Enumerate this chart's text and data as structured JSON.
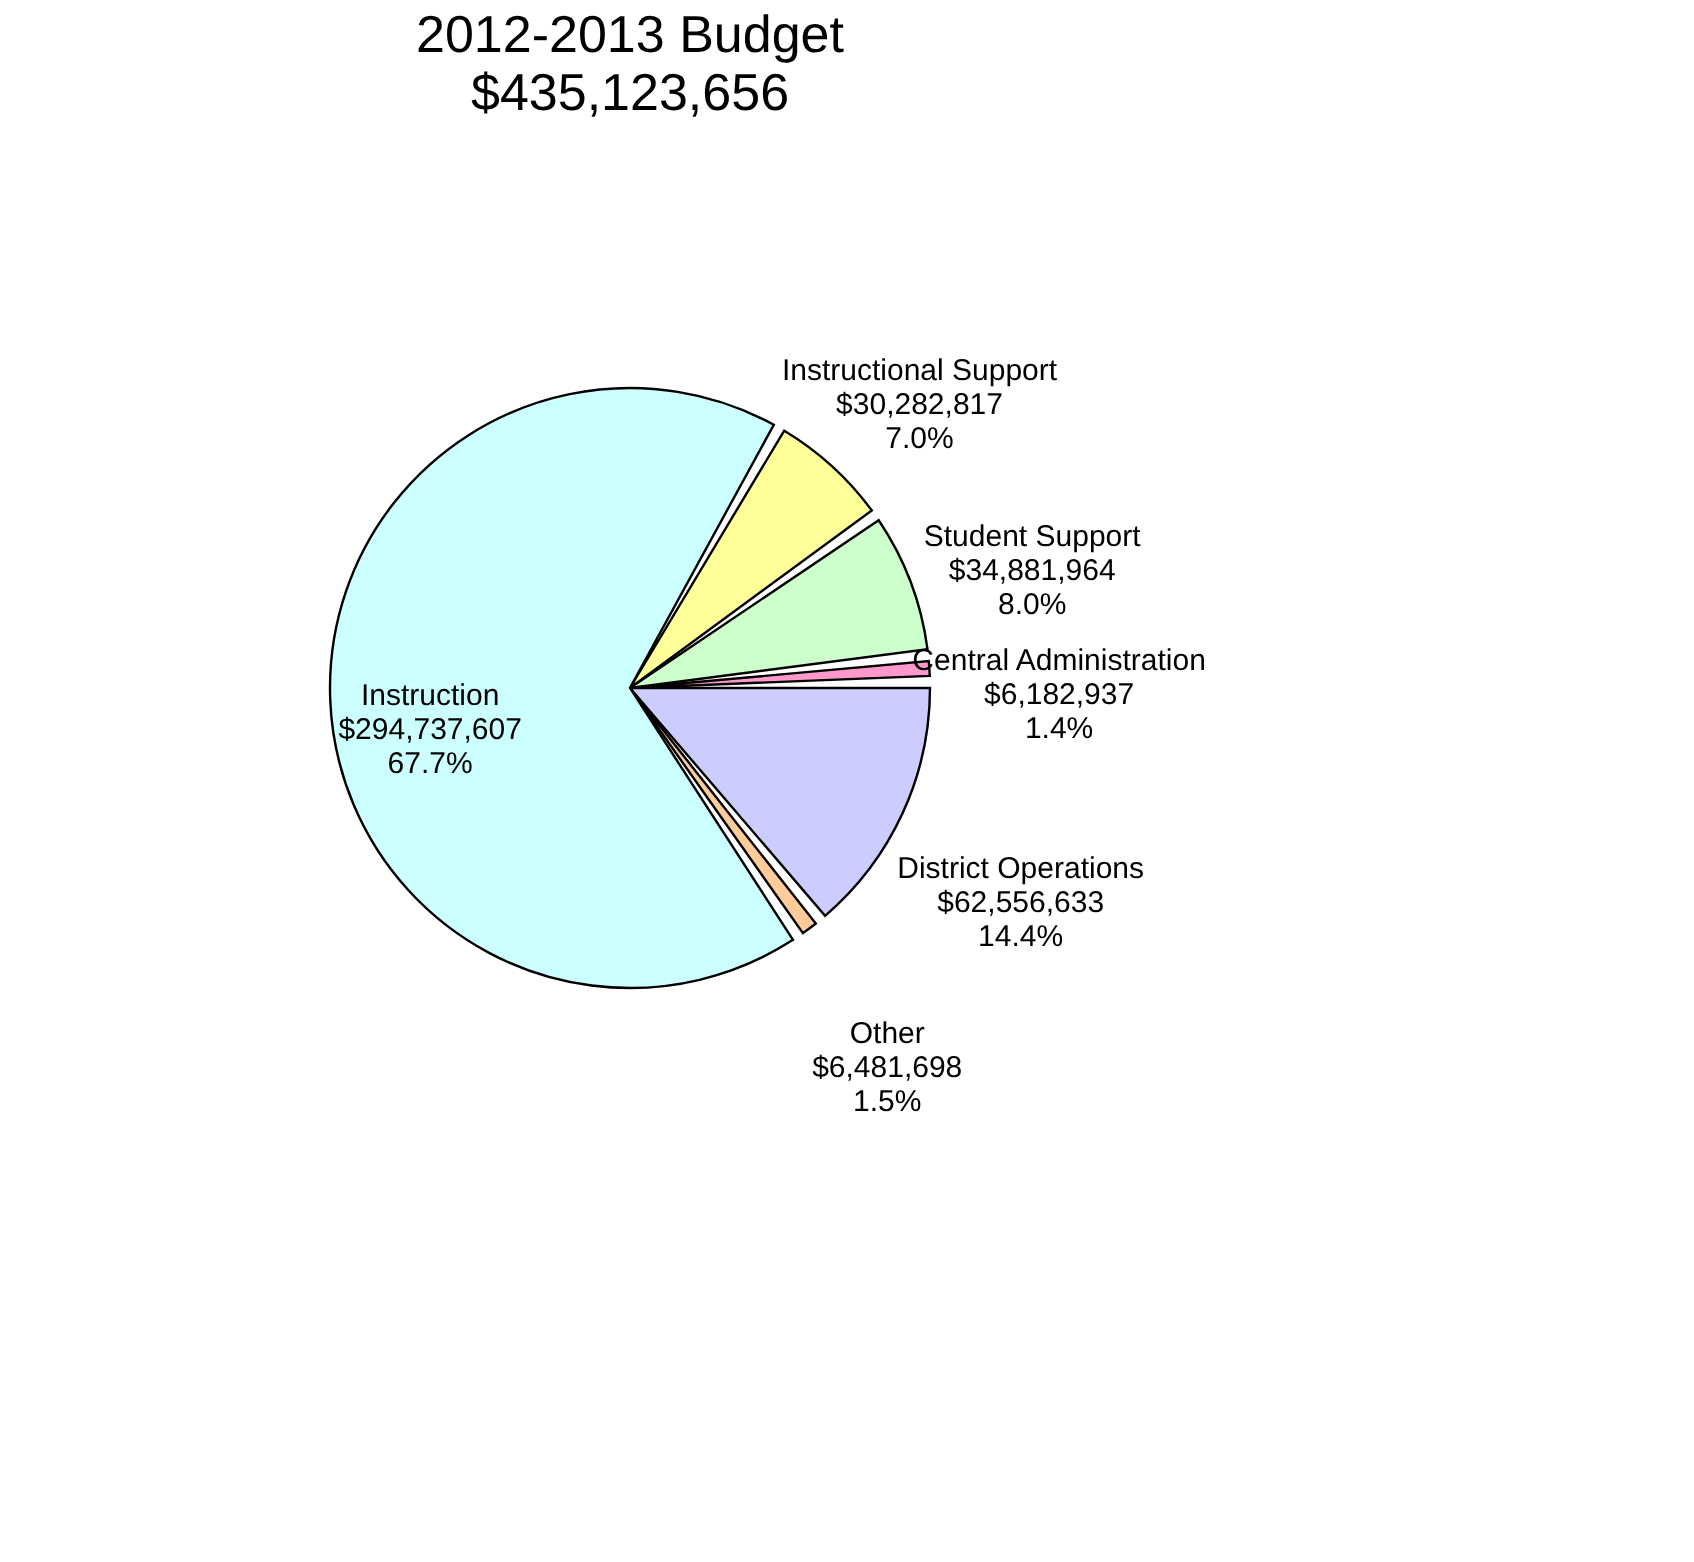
{
  "chart_data": {
    "type": "pie",
    "title": "2012-2013 Budget",
    "subtitle": "$435,123,656",
    "categories": [
      "Instructional Support",
      "Student Support",
      "Central Administration",
      "District Operations",
      "Other",
      "Instruction"
    ],
    "values": [
      30282817,
      34881964,
      6182937,
      62556633,
      6481698,
      294737607
    ],
    "value_labels": [
      "$30,282,817\n7.0%",
      "$34,881,964\n8.0%",
      "$6,182,937\n1.4%",
      "$62,556,633\n14.4%",
      "$6,481,698\n1.5%",
      "$294,737,607\n67.7%"
    ],
    "colors": [
      "#ffff99",
      "#ccffcc",
      "#ff99cc",
      "#ccccff",
      "#ffcc99",
      "#ccffff"
    ],
    "legend": false
  }
}
